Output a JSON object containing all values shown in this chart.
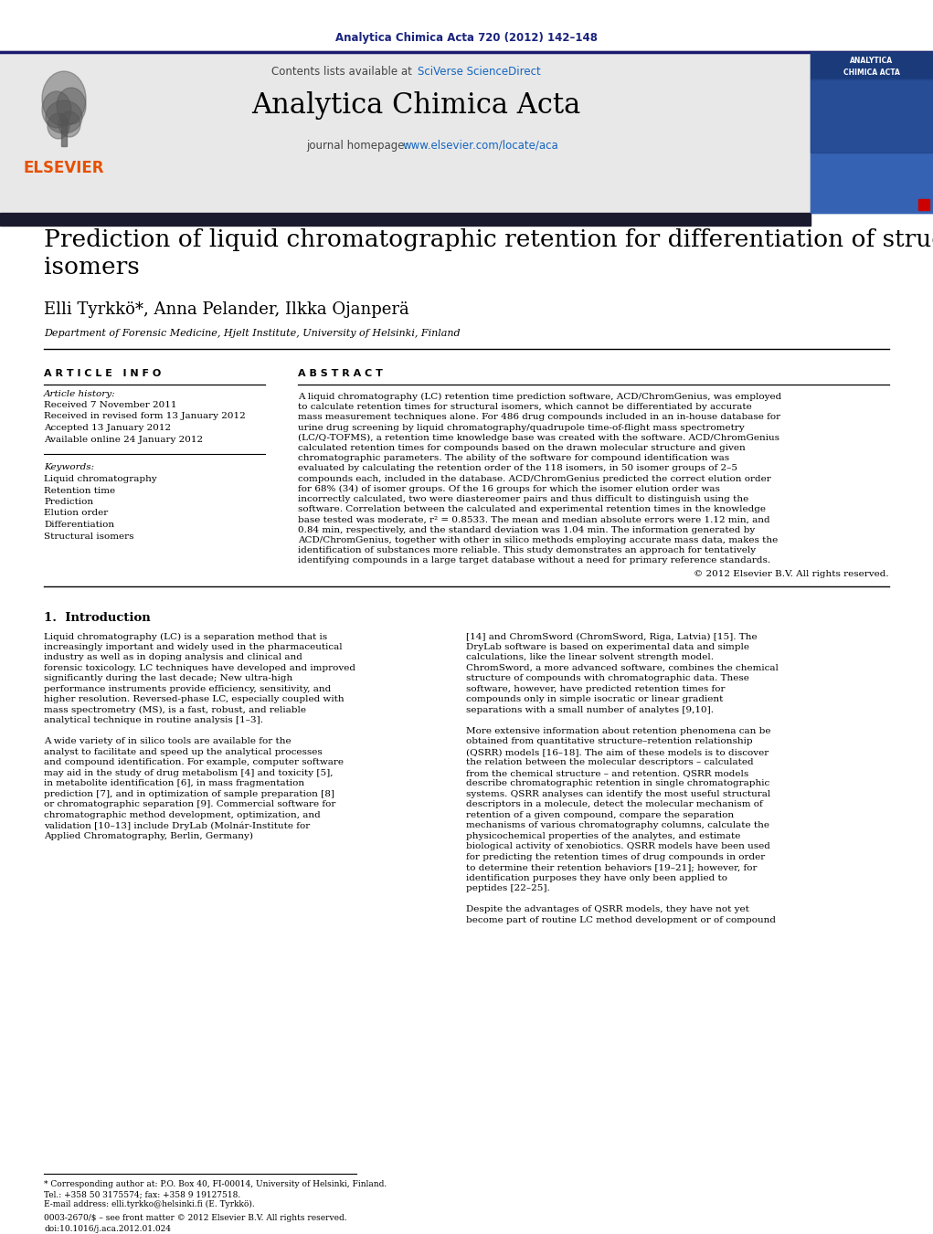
{
  "journal_ref": "Analytica Chimica Acta 720 (2012) 142–148",
  "journal_ref_color": "#1a237e",
  "contents_text": "Contents lists available at ",
  "sciverse_text": "SciVerse ScienceDirect",
  "sciverse_color": "#1565c0",
  "journal_name": "Analytica Chimica Acta",
  "journal_homepage_prefix": "journal homepage: ",
  "journal_url": "www.elsevier.com/locate/aca",
  "journal_url_color": "#1565c0",
  "dark_bar_color": "#1a1a2e",
  "header_bg": "#e8e8e8",
  "article_title_line1": "Prediction of liquid chromatographic retention for differentiation of structural",
  "article_title_line2": "isomers",
  "authors": "Elli Tyrkkö*, Anna Pelander, Ilkka Ojanperä",
  "affiliation": "Department of Forensic Medicine, Hjelt Institute, University of Helsinki, Finland",
  "article_info_header": "A R T I C L E   I N F O",
  "abstract_header": "A B S T R A C T",
  "article_history_label": "Article history:",
  "received": "Received 7 November 2011",
  "received_revised": "Received in revised form 13 January 2012",
  "accepted": "Accepted 13 January 2012",
  "available": "Available online 24 January 2012",
  "keywords_label": "Keywords:",
  "keywords": [
    "Liquid chromatography",
    "Retention time",
    "Prediction",
    "Elution order",
    "Differentiation",
    "Structural isomers"
  ],
  "abstract_text": "A liquid chromatography (LC) retention time prediction software, ACD/ChromGenius, was employed to calculate retention times for structural isomers, which cannot be differentiated by accurate mass measurement techniques alone. For 486 drug compounds included in an in-house database for urine drug screening by liquid chromatography/quadrupole time-of-flight mass spectrometry (LC/Q-TOFMS), a retention time knowledge base was created with the software. ACD/ChromGenius calculated retention times for compounds based on the drawn molecular structure and given chromatographic parameters. The ability of the software for compound identification was evaluated by calculating the retention order of the 118 isomers, in 50 isomer groups of 2–5 compounds each, included in the database. ACD/ChromGenius predicted the correct elution order for 68% (34) of isomer groups. Of the 16 groups for which the isomer elution order was incorrectly calculated, two were diastereomer pairs and thus difficult to distinguish using the software. Correlation between the calculated and experimental retention times in the knowledge base tested was moderate, r² = 0.8533. The mean and median absolute errors were 1.12 min, and 0.84 min, respectively, and the standard deviation was 1.04 min. The information generated by ACD/ChromGenius, together with other in silico methods employing accurate mass data, makes the identification of substances more reliable. This study demonstrates an approach for tentatively identifying compounds in a large target database without a need for primary reference standards.",
  "copyright": "© 2012 Elsevier B.V. All rights reserved.",
  "intro_header": "1.  Introduction",
  "intro_text_col1": "Liquid chromatography (LC) is a separation method that is increasingly important and widely used in the pharmaceutical industry as well as in doping analysis and clinical and forensic toxicology. LC techniques have developed and improved significantly during the last decade; New ultra-high performance instruments provide efficiency, sensitivity, and higher resolution. Reversed-phase LC, especially coupled with mass spectrometry (MS), is a fast, robust, and reliable analytical technique in routine analysis [1–3].\n\nA wide variety of in silico tools are available for the analyst to facilitate and speed up the analytical processes and compound identification. For example, computer software may aid in the study of drug metabolism [4] and toxicity [5], in metabolite identification [6], in mass fragmentation prediction [7], and in optimization of sample preparation [8] or chromatographic separation [9]. Commercial software for chromatographic method development, optimization, and validation [10–13] include DryLab (Molnár-Institute for Applied Chromatography, Berlin, Germany)",
  "intro_text_col2": "[14] and ChromSword (ChromSword, Riga, Latvia) [15]. The DryLab software is based on experimental data and simple calculations, like the linear solvent strength model. ChromSword, a more advanced software, combines the chemical structure of compounds with chromatographic data. These software, however, have predicted retention times for compounds only in simple isocratic or linear gradient separations with a small number of analytes [9,10].\n\nMore extensive information about retention phenomena can be obtained from quantitative structure–retention relationship (QSRR) models [16–18]. The aim of these models is to discover the relation between the molecular descriptors – calculated from the chemical structure – and retention. QSRR models describe chromatographic retention in single chromatographic systems. QSRR analyses can identify the most useful structural descriptors in a molecule, detect the molecular mechanism of retention of a given compound, compare the separation mechanisms of various chromatography columns, calculate the physicochemical properties of the analytes, and estimate biological activity of xenobiotics. QSRR models have been used for predicting the retention times of drug compounds in order to determine their retention behaviors [19–21]; however, for identification purposes they have only been applied to peptides [22–25].\n\nDespite the advantages of QSRR models, they have not yet become part of routine LC method development or of compound",
  "footnote_text_1": "* Corresponding author at: P.O. Box 40, FI-00014, University of Helsinki, Finland.",
  "footnote_text_2": "Tel.: +358 50 3175574; fax: +358 9 19127518.",
  "footnote_text_3": "E-mail address: elli.tyrkko@helsinki.fi (E. Tyrkkö).",
  "issn_text": "0003-2670/$ – see front matter © 2012 Elsevier B.V. All rights reserved.",
  "doi_text": "doi:10.1016/j.aca.2012.01.024",
  "bg_color": "#ffffff",
  "text_color": "#000000",
  "line_color": "#000000"
}
